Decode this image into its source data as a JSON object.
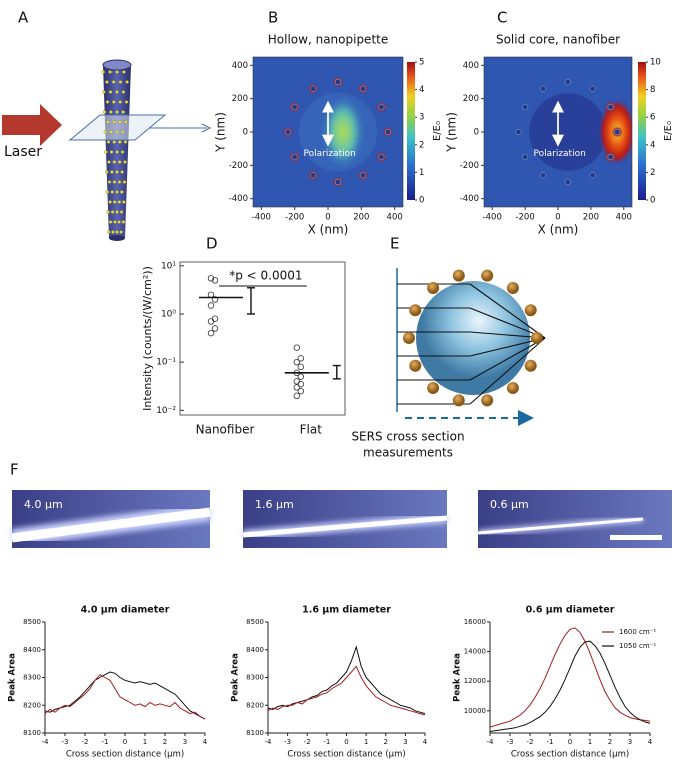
{
  "panel_labels": [
    "A",
    "B",
    "C",
    "D",
    "E",
    "F"
  ],
  "panel_a": {
    "source_label": "Laser"
  },
  "panel_e": {
    "caption_lines": [
      "SERS cross section",
      "measurements"
    ]
  },
  "panel_f": {
    "image_labels": [
      "4.0 μm",
      "1.6 μm",
      "0.6 μm"
    ]
  },
  "chart_data": [
    {
      "type": "heatmap",
      "title": "Hollow, nanopipette",
      "x_label": "X (nm)",
      "y_label": "Y (nm)",
      "xlim": [
        -450,
        450
      ],
      "xticks": [
        -400,
        -200,
        0,
        200,
        400
      ],
      "ylim": [
        -450,
        450
      ],
      "yticks": [
        -400,
        -200,
        0,
        200,
        400
      ],
      "colorbar_label": "E/E₀",
      "colorbar_lim": [
        0,
        5
      ],
      "colorbar_ticks": [
        0,
        1,
        2,
        3,
        4,
        5
      ],
      "annotation": "Polarization"
    },
    {
      "type": "heatmap",
      "title": "Solid core, nanofiber",
      "x_label": "X (nm)",
      "y_label": "Y (nm)",
      "xlim": [
        -450,
        450
      ],
      "xticks": [
        -400,
        -200,
        0,
        200,
        400
      ],
      "ylim": [
        -450,
        450
      ],
      "yticks": [
        -400,
        -200,
        0,
        200,
        400
      ],
      "colorbar_label": "E/E₀",
      "colorbar_lim": [
        0,
        10
      ],
      "colorbar_ticks": [
        0,
        2,
        4,
        6,
        8,
        10
      ],
      "annotation": "Polarization"
    },
    {
      "type": "dotplot",
      "y_label": "Intensity  (counts/(W/cm²))",
      "annotation": "*p < 0.0001",
      "categories": [
        "Nanofiber",
        "Flat"
      ],
      "log_scale": true,
      "ylim": [
        0.008,
        12
      ],
      "yticks": [
        {
          "value": 0.01,
          "label": "10⁻²"
        },
        {
          "value": 0.1,
          "label": "10⁻¹"
        },
        {
          "value": 1,
          "label": "10⁰"
        },
        {
          "value": 10,
          "label": "10¹"
        }
      ],
      "points": [
        [
          5.5,
          5,
          2.5,
          2,
          1.5,
          0.8,
          0.7,
          0.5,
          0.4
        ],
        [
          0.2,
          0.12,
          0.1,
          0.08,
          0.06,
          0.05,
          0.04,
          0.035,
          0.03,
          0.025,
          0.02
        ]
      ],
      "means": [
        2.2,
        0.06
      ],
      "error_ranges": [
        [
          1.0,
          3.5
        ],
        [
          0.045,
          0.085
        ]
      ]
    },
    {
      "type": "line",
      "title": "4.0 μm diameter",
      "x_label": "Cross section distance (μm)",
      "y_label": "Peak Area",
      "x": [
        -4,
        -3.75,
        -3.5,
        -3.25,
        -3,
        -2.75,
        -2.5,
        -2.25,
        -2,
        -1.75,
        -1.5,
        -1.25,
        -1,
        -0.75,
        -0.5,
        -0.25,
        0,
        0.25,
        0.5,
        0.75,
        1,
        1.25,
        1.5,
        1.75,
        2,
        2.25,
        2.5,
        2.75,
        3,
        3.25,
        3.5,
        3.75,
        4
      ],
      "xlim": [
        -4,
        4
      ],
      "xticks": [
        -4,
        -3,
        -2,
        -1,
        0,
        1,
        2,
        3,
        4
      ],
      "ylim": [
        8100,
        8500
      ],
      "yticks": [
        8100,
        8200,
        8300,
        8400,
        8500
      ],
      "series": [
        {
          "color": "#111111",
          "values": [
            8180,
            8175,
            8185,
            8190,
            8195,
            8200,
            8215,
            8230,
            8250,
            8270,
            8290,
            8300,
            8310,
            8320,
            8315,
            8300,
            8290,
            8285,
            8280,
            8285,
            8280,
            8275,
            8280,
            8270,
            8260,
            8250,
            8240,
            8220,
            8200,
            8180,
            8170,
            8160,
            8150
          ]
        },
        {
          "color": "#a31e22",
          "values": [
            8170,
            8185,
            8175,
            8190,
            8200,
            8195,
            8210,
            8225,
            8240,
            8260,
            8290,
            8310,
            8300,
            8290,
            8260,
            8230,
            8220,
            8210,
            8200,
            8205,
            8195,
            8210,
            8200,
            8205,
            8200,
            8195,
            8210,
            8190,
            8180,
            8170,
            8175,
            8160,
            8150
          ]
        }
      ]
    },
    {
      "type": "line",
      "title": "1.6 μm diameter",
      "x_label": "Cross section distance (μm)",
      "y_label": "Peak Area",
      "x": [
        -4,
        -3.75,
        -3.5,
        -3.25,
        -3,
        -2.75,
        -2.5,
        -2.25,
        -2,
        -1.75,
        -1.5,
        -1.25,
        -1,
        -0.75,
        -0.5,
        -0.25,
        0,
        0.25,
        0.5,
        0.75,
        1,
        1.25,
        1.5,
        1.75,
        2,
        2.25,
        2.5,
        2.75,
        3,
        3.25,
        3.5,
        3.75,
        4
      ],
      "xlim": [
        -4,
        4
      ],
      "xticks": [
        -4,
        -3,
        -2,
        -1,
        0,
        1,
        2,
        3,
        4
      ],
      "ylim": [
        8100,
        8500
      ],
      "yticks": [
        8100,
        8200,
        8300,
        8400,
        8500
      ],
      "series": [
        {
          "color": "#111111",
          "values": [
            8190,
            8185,
            8195,
            8200,
            8195,
            8205,
            8210,
            8215,
            8220,
            8230,
            8235,
            8250,
            8255,
            8270,
            8280,
            8300,
            8320,
            8360,
            8410,
            8340,
            8300,
            8280,
            8260,
            8240,
            8230,
            8220,
            8210,
            8200,
            8195,
            8190,
            8180,
            8175,
            8170
          ]
        },
        {
          "color": "#a31e22",
          "values": [
            8180,
            8190,
            8185,
            8195,
            8200,
            8200,
            8210,
            8205,
            8220,
            8225,
            8230,
            8240,
            8245,
            8260,
            8270,
            8280,
            8300,
            8320,
            8340,
            8300,
            8270,
            8250,
            8230,
            8220,
            8210,
            8200,
            8195,
            8190,
            8185,
            8180,
            8175,
            8170,
            8165
          ]
        }
      ]
    },
    {
      "type": "line",
      "title": "0.6 μm diameter",
      "x_label": "Cross section distance (μm)",
      "y_label": "Peak Area",
      "x": [
        -4,
        -3.75,
        -3.5,
        -3.25,
        -3,
        -2.75,
        -2.5,
        -2.25,
        -2,
        -1.75,
        -1.5,
        -1.25,
        -1,
        -0.75,
        -0.5,
        -0.25,
        0,
        0.25,
        0.5,
        0.75,
        1,
        1.25,
        1.5,
        1.75,
        2,
        2.25,
        2.5,
        2.75,
        3,
        3.25,
        3.5,
        3.75,
        4
      ],
      "xlim": [
        -4,
        4
      ],
      "xticks": [
        -4,
        -3,
        -2,
        -1,
        0,
        1,
        2,
        3,
        4
      ],
      "ylim": [
        8500,
        16000
      ],
      "yticks": [
        10000,
        12000,
        14000,
        16000
      ],
      "legend": "upper right",
      "series": [
        {
          "name": "1600 cm⁻¹",
          "color": "#a31e22",
          "values": [
            8900,
            9000,
            9100,
            9200,
            9300,
            9500,
            9700,
            10000,
            10400,
            10900,
            11500,
            12200,
            13000,
            13800,
            14500,
            15100,
            15500,
            15600,
            15300,
            14700,
            13900,
            13000,
            12100,
            11300,
            10700,
            10200,
            9900,
            9700,
            9550,
            9450,
            9400,
            9350,
            9300
          ]
        },
        {
          "name": "1050 cm⁻¹",
          "color": "#111111",
          "values": [
            8600,
            8650,
            8700,
            8750,
            8800,
            8850,
            8950,
            9050,
            9200,
            9400,
            9600,
            9900,
            10300,
            10800,
            11400,
            12100,
            12900,
            13700,
            14300,
            14650,
            14700,
            14400,
            13900,
            13200,
            12400,
            11600,
            10900,
            10300,
            9900,
            9600,
            9400,
            9250,
            9150
          ]
        }
      ]
    }
  ]
}
